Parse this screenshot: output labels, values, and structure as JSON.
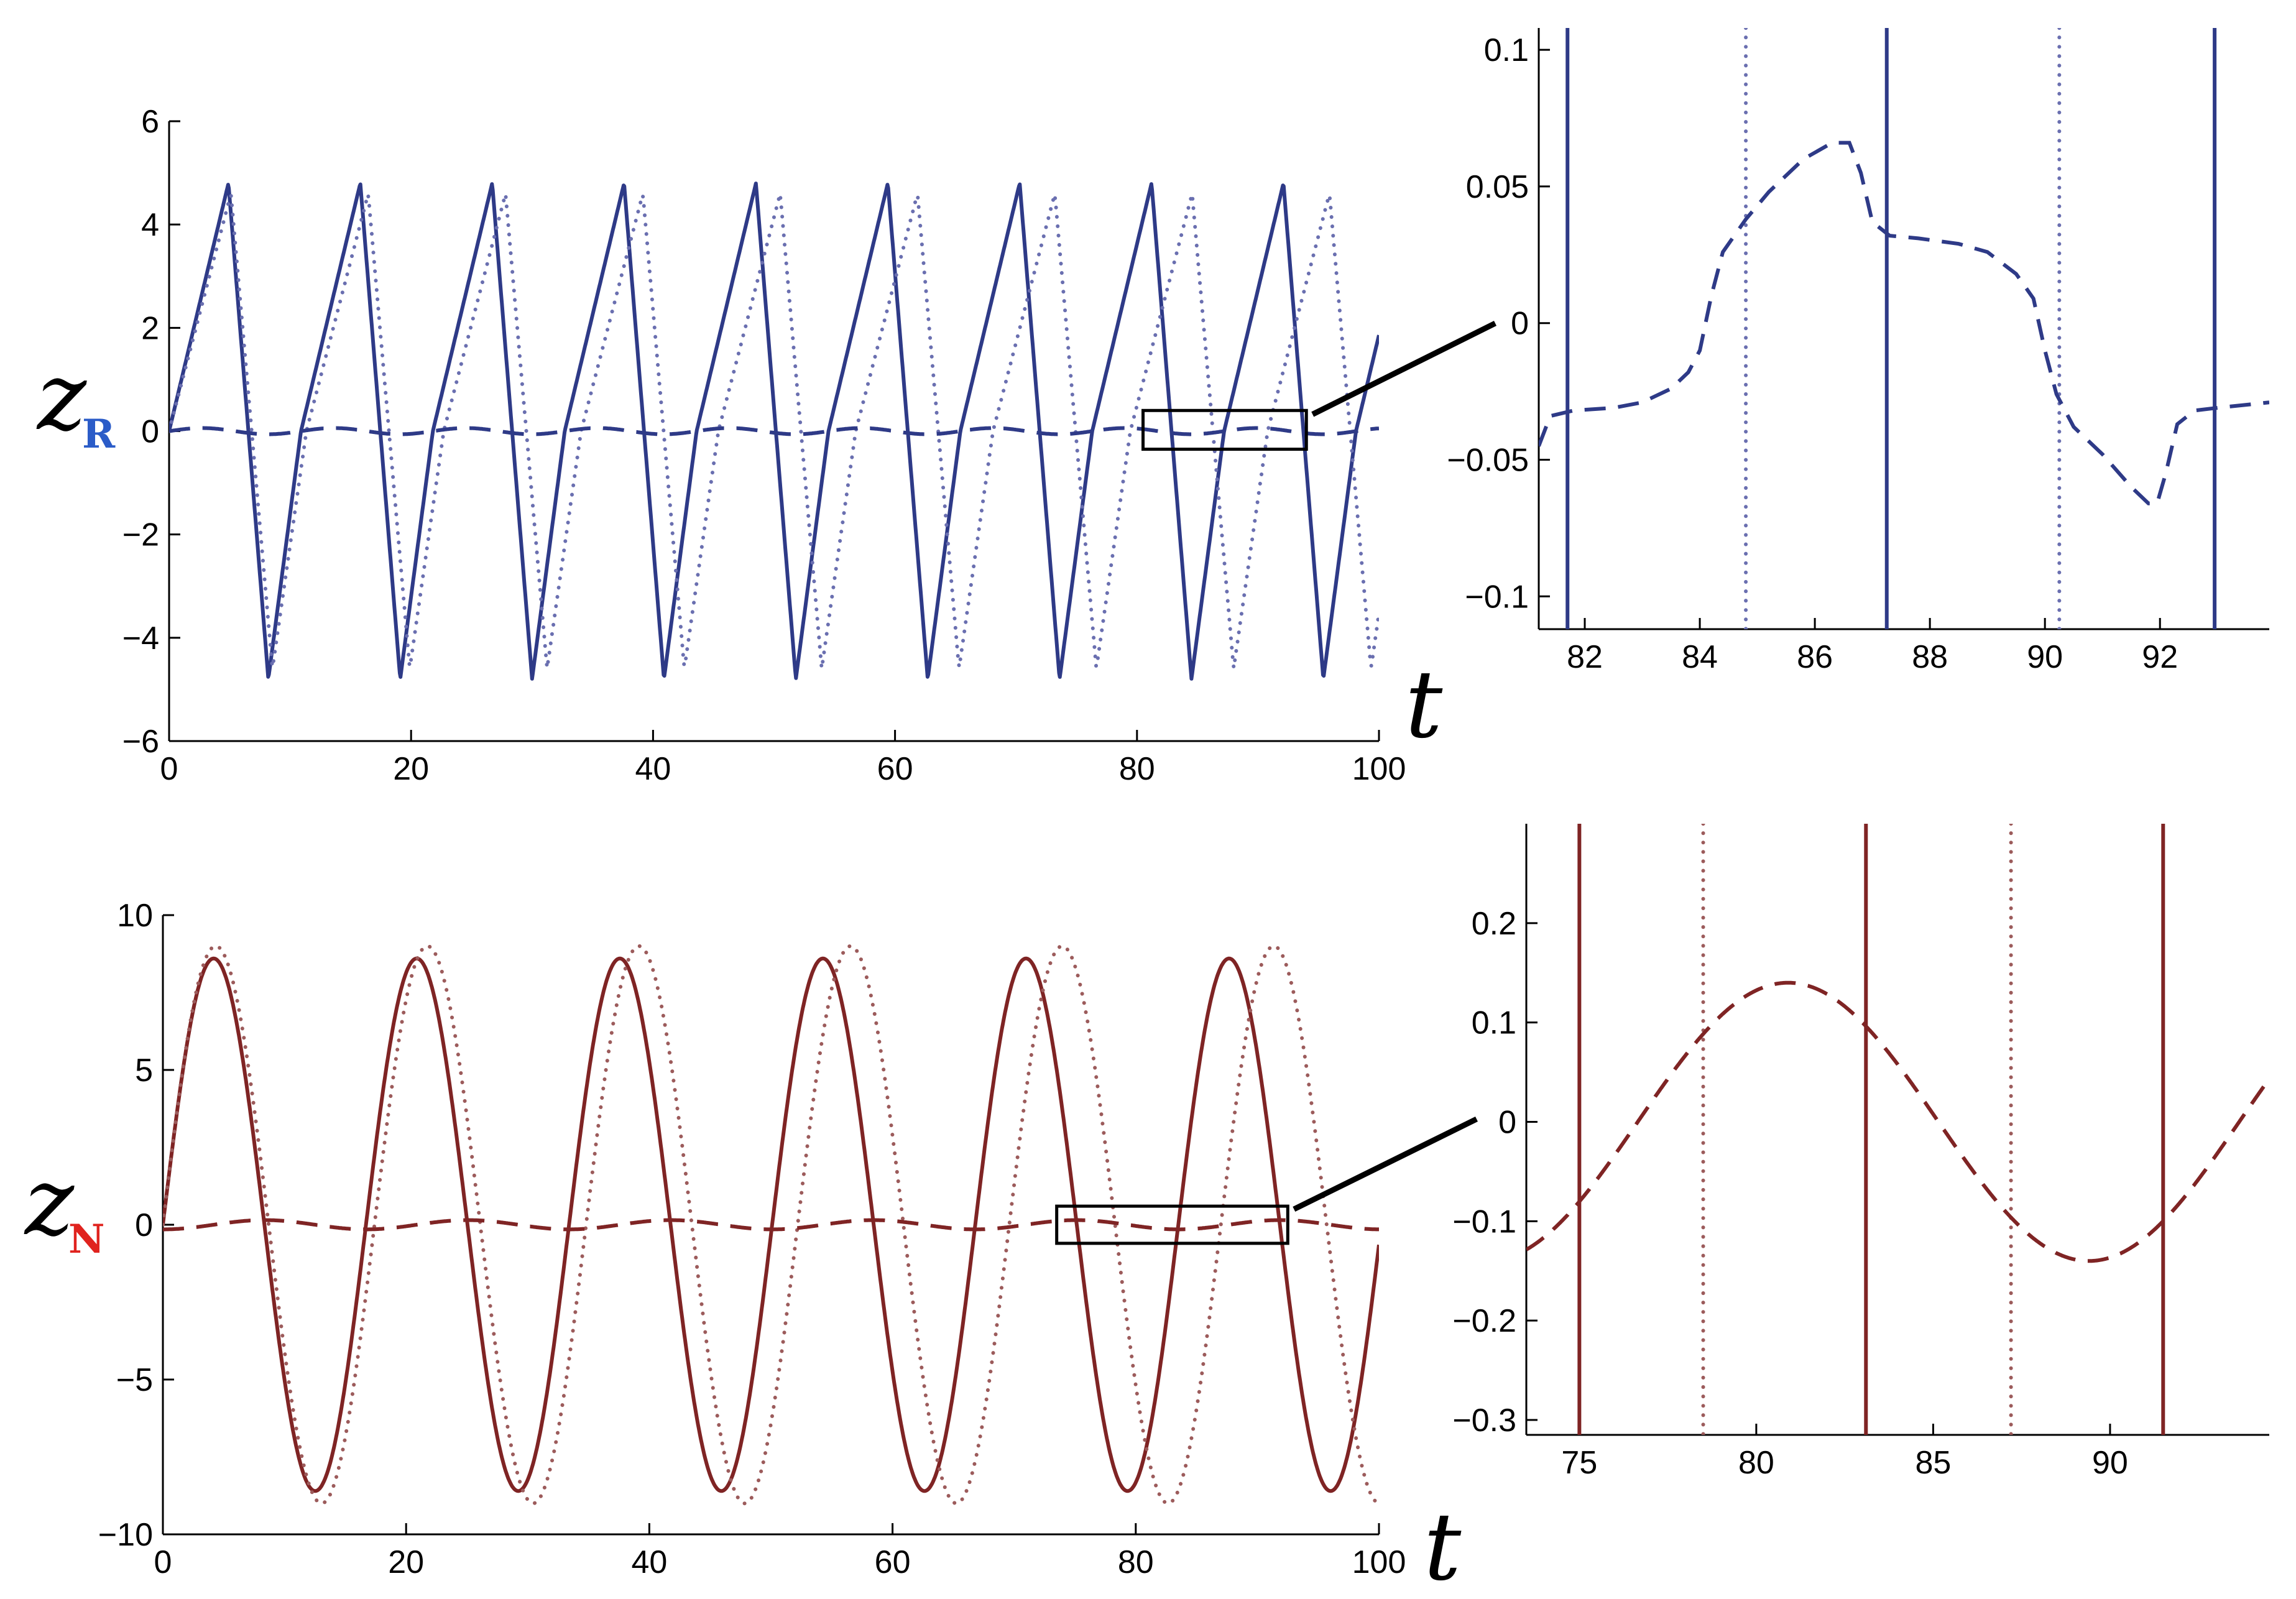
{
  "colors": {
    "blue": "#2e3a87",
    "blue_dot": "#6a6fb0",
    "red": "#7f2424",
    "red_dot": "#9c5b5b",
    "sub_R": "#2b5cc8",
    "sub_N": "#e0231e"
  },
  "chart_data": [
    {
      "id": "zR_main",
      "type": "line",
      "ylabel": "z",
      "ylabel_sub": "R",
      "xlabel": "t",
      "xlim": [
        0,
        100
      ],
      "ylim": [
        -6,
        6
      ],
      "xticks": [
        0,
        20,
        40,
        60,
        80,
        100
      ],
      "yticks": [
        6,
        4,
        2,
        0,
        -2,
        -4,
        -6
      ],
      "xtick_labels": [
        "0",
        "20",
        "40",
        "60",
        "80",
        "100"
      ],
      "ytick_labels": [
        "6",
        "4",
        "2",
        "0",
        "−2",
        "−4",
        "−6"
      ],
      "series": [
        {
          "style": "solid",
          "color": "blue",
          "kind": "sawtooth",
          "amp": 4.8,
          "period": 10.9,
          "peakfrac": 0.45
        },
        {
          "style": "dotted",
          "color": "blue_dot",
          "kind": "sawtooth",
          "amp": 4.6,
          "period": 11.35,
          "peakfrac": 0.45
        },
        {
          "style": "dashed",
          "color": "blue",
          "kind": "sine",
          "amp": 0.06,
          "period": 10.9,
          "phase": 0.0
        }
      ],
      "zoom_box": {
        "x": [
          80.5,
          94
        ],
        "y": [
          -0.35,
          0.4
        ]
      }
    },
    {
      "id": "zR_zoom",
      "type": "line",
      "xlim": [
        81.2,
        93.9
      ],
      "ylim": [
        -0.112,
        0.108
      ],
      "xticks": [
        82,
        84,
        86,
        88,
        90,
        92
      ],
      "yticks": [
        0.1,
        0.05,
        0,
        -0.05,
        -0.1
      ],
      "xtick_labels": [
        "82",
        "84",
        "86",
        "88",
        "90",
        "92"
      ],
      "ytick_labels": [
        "0.1",
        "0.05",
        "0",
        "−0.05",
        "−0.1"
      ],
      "series": [
        {
          "style": "solid",
          "color": "blue",
          "kind": "verticals",
          "x": [
            81.7,
            87.25,
            92.95
          ]
        },
        {
          "style": "dotted",
          "color": "blue_dot",
          "kind": "verticals",
          "x": [
            84.8,
            90.25
          ]
        },
        {
          "style": "dashed",
          "color": "blue",
          "kind": "points",
          "x": [
            81.2,
            81.4,
            81.8,
            82.5,
            83.0,
            83.5,
            83.8,
            84.0,
            84.2,
            84.4,
            84.8,
            85.2,
            85.8,
            86.3,
            86.6,
            86.8,
            87.0,
            87.3,
            87.8,
            88.5,
            89.0,
            89.5,
            89.8,
            90.0,
            90.2,
            90.5,
            91.0,
            91.5,
            91.8,
            91.95,
            92.1,
            92.3,
            92.6,
            93.0,
            93.9
          ],
          "y": [
            -0.045,
            -0.034,
            -0.032,
            -0.031,
            -0.029,
            -0.024,
            -0.018,
            -0.01,
            0.01,
            0.026,
            0.038,
            0.048,
            0.06,
            0.066,
            0.066,
            0.055,
            0.037,
            0.032,
            0.031,
            0.029,
            0.026,
            0.018,
            0.009,
            -0.01,
            -0.026,
            -0.038,
            -0.048,
            -0.06,
            -0.066,
            -0.066,
            -0.055,
            -0.037,
            -0.032,
            -0.031,
            -0.029
          ]
        }
      ]
    },
    {
      "id": "zN_main",
      "type": "line",
      "ylabel": "z",
      "ylabel_sub": "N",
      "xlabel": "t",
      "xlim": [
        0,
        100
      ],
      "ylim": [
        -10,
        10
      ],
      "xticks": [
        0,
        20,
        40,
        60,
        80,
        100
      ],
      "yticks": [
        10,
        5,
        0,
        -5,
        -10
      ],
      "xtick_labels": [
        "0",
        "20",
        "40",
        "60",
        "80",
        "100"
      ],
      "ytick_labels": [
        "10",
        "5",
        "0",
        "−5",
        "−10"
      ],
      "series": [
        {
          "style": "solid",
          "color": "red",
          "kind": "sine",
          "amp": 8.6,
          "period": 16.7,
          "phase": 0.0
        },
        {
          "style": "dotted",
          "color": "red_dot",
          "kind": "sine",
          "amp": 9.0,
          "period": 17.4,
          "phase": 0.0
        },
        {
          "style": "dashed",
          "color": "red",
          "kind": "sine",
          "amp": 0.15,
          "period": 16.7,
          "phase": -1.57
        }
      ],
      "zoom_box": {
        "x": [
          73.5,
          92.5
        ],
        "y": [
          -0.6,
          0.6
        ]
      }
    },
    {
      "id": "zN_zoom",
      "type": "line",
      "xlim": [
        73.5,
        94.5
      ],
      "ylim": [
        -0.315,
        0.3
      ],
      "xticks": [
        75,
        80,
        85,
        90
      ],
      "yticks": [
        0.2,
        0.1,
        0,
        -0.1,
        -0.2,
        -0.3
      ],
      "xtick_labels": [
        "75",
        "80",
        "85",
        "90"
      ],
      "ytick_labels": [
        "0.2",
        "0.1",
        "0",
        "−0.1",
        "−0.2",
        "−0.3"
      ],
      "series": [
        {
          "style": "solid",
          "color": "red",
          "kind": "verticals",
          "x": [
            75.0,
            83.1,
            91.5
          ]
        },
        {
          "style": "dotted",
          "color": "red_dot",
          "kind": "verticals",
          "x": [
            78.5,
            87.2
          ]
        },
        {
          "style": "dashed",
          "color": "red",
          "kind": "sine_wave",
          "amp": 0.14,
          "period": 17.0,
          "peak": 80.9
        }
      ]
    }
  ]
}
